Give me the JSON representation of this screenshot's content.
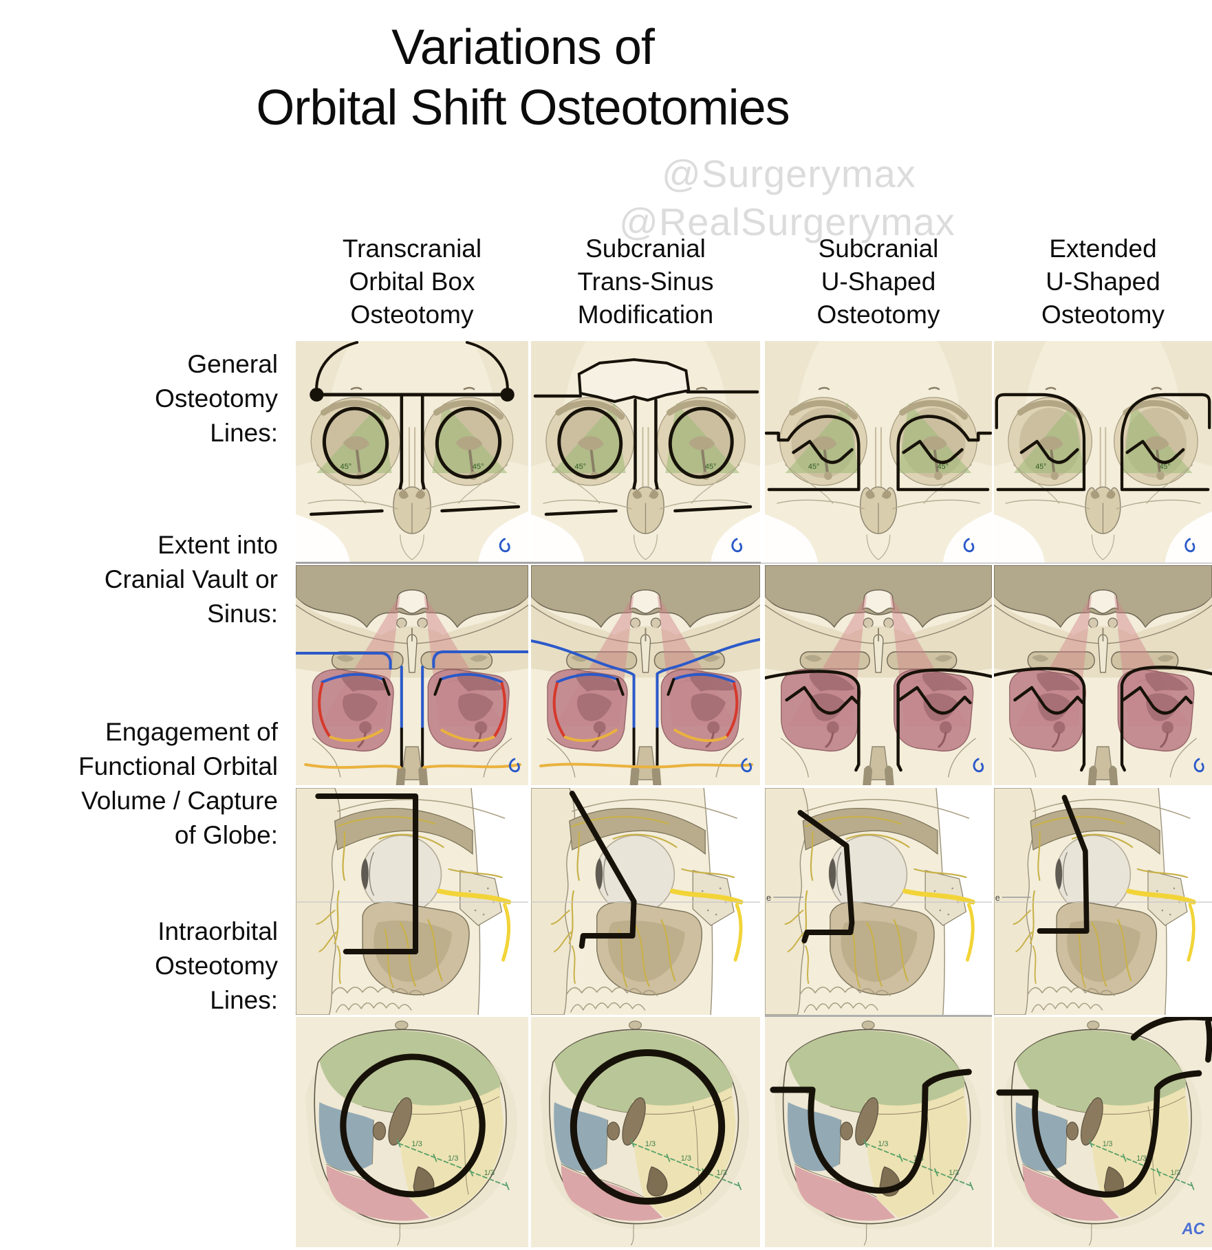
{
  "title": {
    "text": "Variations of\nOrbital Shift Osteotomies"
  },
  "watermarks": [
    "@Surgerymax",
    "@RealSurgerymax"
  ],
  "columns": [
    {
      "id": "transcranial-orbital-box-osteotomy",
      "label": "Transcranial\nOrbital Box\nOsteotomy"
    },
    {
      "id": "subcranial-trans-sinus-modification",
      "label": "Subcranial\nTrans-Sinus\nModification"
    },
    {
      "id": "subcranial-u-shaped-osteotomy",
      "label": "Subcranial\nU-Shaped\nOsteotomy"
    },
    {
      "id": "extended-u-shaped-osteotomy",
      "label": "Extended\nU-Shaped\nOsteotomy"
    }
  ],
  "rows": [
    {
      "id": "general-osteotomy-lines",
      "label": "General\nOsteotomy\nLines:"
    },
    {
      "id": "extent-into-cranial-vault-or-sinus",
      "label": "Extent into\nCranial Vault or\nSinus:"
    },
    {
      "id": "engagement-of-functional-orbital-volume",
      "label": "Engagement of\nFunctional Orbital\nVolume / Capture\nof Globe:"
    },
    {
      "id": "intraorbital-osteotomy-lines",
      "label": "Intraorbital\nOsteotomy\nLines:"
    }
  ],
  "figure_labels": {
    "angle_45": "45°",
    "one_third": "1/3",
    "eye_axis": "e",
    "artist_signature": "AC"
  },
  "palette": {
    "bone": "#f3edda",
    "bone_rim": "#ded3b4",
    "bone_dark": "#cbbfa0",
    "bone_shade": "#e8dfc4",
    "bone_taupe": "#b2a88b",
    "outline": "#6f6754",
    "osteotomy_black": "#171209",
    "green_fill": "#9cba77",
    "green_text": "#2e5a20",
    "pink_fan": "#d08289",
    "orbit_pink": "#c1868d",
    "orbit_pink_dark": "#a26b72",
    "blue_line": "#2b59c9",
    "red_line": "#d6392b",
    "yellow_line": "#eab23e",
    "nerve_yellow": "#c9b149",
    "nerve_bright": "#f2d438",
    "globe_fill": "#e9e4d8",
    "wall_green": "#b9c697",
    "wall_blue": "#93aab5",
    "wall_yellow": "#ede2b3",
    "wall_pink": "#dba6a7",
    "brown_structure": "#8b7a5e",
    "measure_green": "#58a06a",
    "signature_blue": "#4a6fd4",
    "watermark_gray": "#dcdcdc",
    "divider_gray": "#9a9a9a"
  }
}
